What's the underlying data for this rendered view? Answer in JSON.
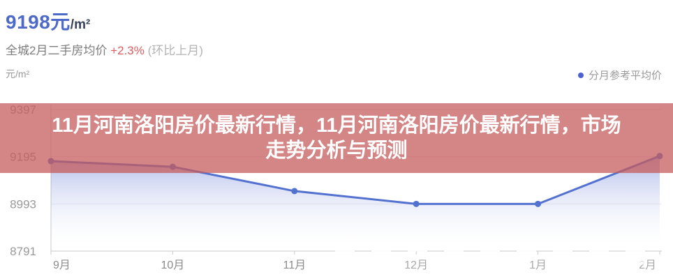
{
  "header": {
    "price_value": "9198元",
    "price_unit": "/m²",
    "subtitle_prefix": "全城2月二手房均价",
    "change": "+2.3%",
    "change_suffix": "(环比上月)",
    "axis_unit": "元/m²"
  },
  "legend": {
    "label": "分月参考平均价"
  },
  "banner": {
    "title_line1": "11月河南洛阳房价最新行情，11月河南洛阳房价最新行情，市场",
    "title_line2": "走势分析与预测"
  },
  "colors": {
    "accent_blue": "#4d6ac9",
    "change_red": "#dd5c5c",
    "line_blue": "#5372d0",
    "banner_pink": "#c65c5c",
    "axis_label_gray": "#999999"
  },
  "chart_data": {
    "type": "line",
    "title": "",
    "xlabel": "",
    "ylabel": "元/m²",
    "categories": [
      "9月",
      "10月",
      "11月",
      "12月",
      "1月",
      "2月"
    ],
    "series": [
      {
        "name": "分月参考平均价",
        "values": [
          9176,
          9152,
          9048,
          8993,
          8993,
          9198
        ]
      }
    ],
    "yticks": [
      9397,
      9195,
      8993,
      8791
    ],
    "ylim": [
      8791,
      9397
    ],
    "grid": true,
    "area": true,
    "smooth": false,
    "legend_position": "top-right",
    "line_color": "#5372d0",
    "area_top_color": "#5b73d1",
    "point_radius": 4.5
  }
}
